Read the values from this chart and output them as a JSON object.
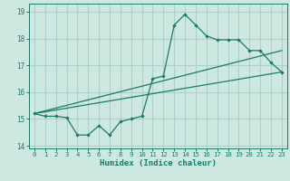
{
  "title": "",
  "xlabel": "Humidex (Indice chaleur)",
  "bg_color": "#cde8e0",
  "grid_color": "#afd0c8",
  "line_color": "#1a7a6a",
  "line1_x": [
    0,
    1,
    2,
    3,
    4,
    5,
    6,
    7,
    8,
    9,
    10,
    11,
    12,
    13,
    14,
    15,
    16,
    17,
    18,
    19,
    20,
    21,
    22,
    23
  ],
  "line1_y": [
    15.2,
    15.1,
    15.1,
    15.05,
    14.4,
    14.4,
    14.75,
    14.4,
    14.9,
    15.0,
    15.1,
    16.5,
    16.6,
    18.5,
    18.9,
    18.5,
    18.1,
    17.95,
    17.95,
    17.95,
    17.55,
    17.55,
    17.1,
    16.75
  ],
  "line2_x": [
    0,
    23
  ],
  "line2_y": [
    15.2,
    17.55
  ],
  "line3_x": [
    0,
    23
  ],
  "line3_y": [
    15.2,
    16.75
  ],
  "ylim": [
    13.9,
    19.3
  ],
  "xlim": [
    -0.5,
    23.5
  ],
  "yticks": [
    14,
    15,
    16,
    17,
    18,
    19
  ],
  "xticks": [
    0,
    1,
    2,
    3,
    4,
    5,
    6,
    7,
    8,
    9,
    10,
    11,
    12,
    13,
    14,
    15,
    16,
    17,
    18,
    19,
    20,
    21,
    22,
    23
  ]
}
